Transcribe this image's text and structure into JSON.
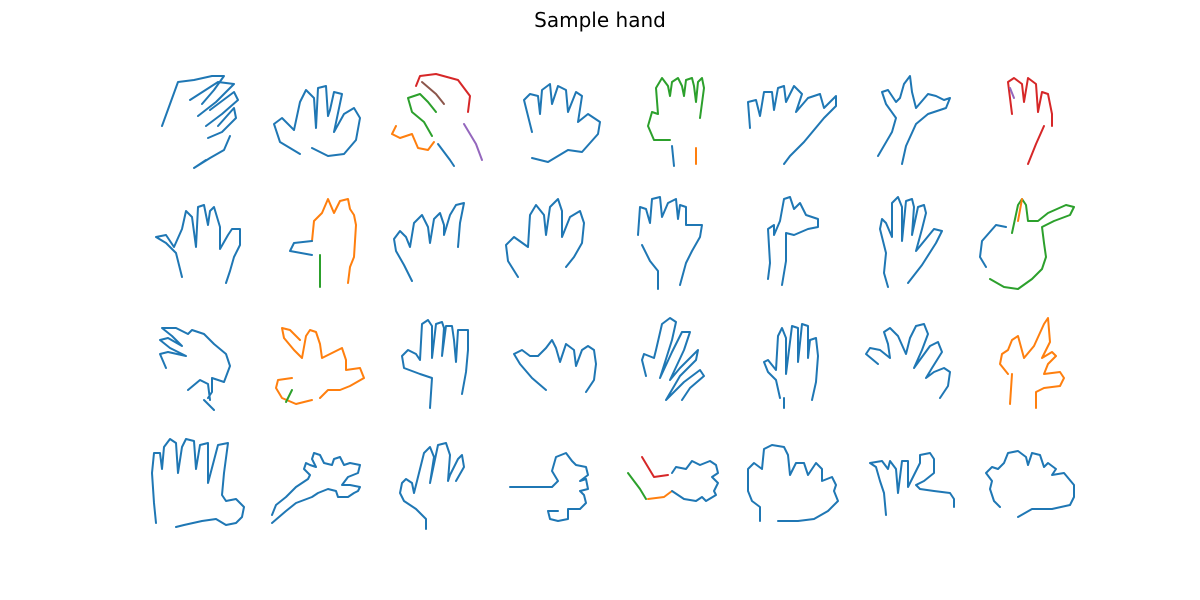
{
  "title": "Sample hand",
  "colors": {
    "blue": "#1f77b4",
    "orange": "#ff7f0e",
    "green": "#2ca02c",
    "red": "#d62728",
    "purple": "#9467bd",
    "brown": "#8c564b"
  },
  "grid": {
    "rows": 4,
    "cols": 8
  },
  "sketches": [
    {
      "id": "hand-1",
      "strokes": [
        "blue"
      ]
    },
    {
      "id": "hand-2",
      "strokes": [
        "blue"
      ]
    },
    {
      "id": "hand-3",
      "strokes": [
        "red",
        "brown",
        "green",
        "orange",
        "blue",
        "purple"
      ]
    },
    {
      "id": "hand-4",
      "strokes": [
        "blue"
      ]
    },
    {
      "id": "hand-5",
      "strokes": [
        "green",
        "blue",
        "orange"
      ]
    },
    {
      "id": "hand-6",
      "strokes": [
        "blue"
      ]
    },
    {
      "id": "hand-7",
      "strokes": [
        "blue"
      ]
    },
    {
      "id": "hand-8",
      "strokes": [
        "red",
        "purple"
      ]
    },
    {
      "id": "hand-9",
      "strokes": [
        "blue"
      ]
    },
    {
      "id": "hand-10",
      "strokes": [
        "orange",
        "blue",
        "green"
      ]
    },
    {
      "id": "hand-11",
      "strokes": [
        "blue"
      ]
    },
    {
      "id": "hand-12",
      "strokes": [
        "blue"
      ]
    },
    {
      "id": "hand-13",
      "strokes": [
        "blue"
      ]
    },
    {
      "id": "hand-14",
      "strokes": [
        "blue"
      ]
    },
    {
      "id": "hand-15",
      "strokes": [
        "blue"
      ]
    },
    {
      "id": "hand-16",
      "strokes": [
        "green",
        "orange",
        "blue"
      ]
    },
    {
      "id": "hand-17",
      "strokes": [
        "blue"
      ]
    },
    {
      "id": "hand-18",
      "strokes": [
        "orange",
        "green"
      ]
    },
    {
      "id": "hand-19",
      "strokes": [
        "blue"
      ]
    },
    {
      "id": "hand-20",
      "strokes": [
        "blue"
      ]
    },
    {
      "id": "hand-21",
      "strokes": [
        "blue"
      ]
    },
    {
      "id": "hand-22",
      "strokes": [
        "blue"
      ]
    },
    {
      "id": "hand-23",
      "strokes": [
        "blue"
      ]
    },
    {
      "id": "hand-24",
      "strokes": [
        "orange"
      ]
    },
    {
      "id": "hand-25",
      "strokes": [
        "blue"
      ]
    },
    {
      "id": "hand-26",
      "strokes": [
        "blue"
      ]
    },
    {
      "id": "hand-27",
      "strokes": [
        "blue"
      ]
    },
    {
      "id": "hand-28",
      "strokes": [
        "blue"
      ]
    },
    {
      "id": "hand-29",
      "strokes": [
        "red",
        "green",
        "orange",
        "blue"
      ]
    },
    {
      "id": "hand-30",
      "strokes": [
        "blue"
      ]
    },
    {
      "id": "hand-31",
      "strokes": [
        "blue"
      ]
    },
    {
      "id": "hand-32",
      "strokes": [
        "blue"
      ]
    }
  ]
}
